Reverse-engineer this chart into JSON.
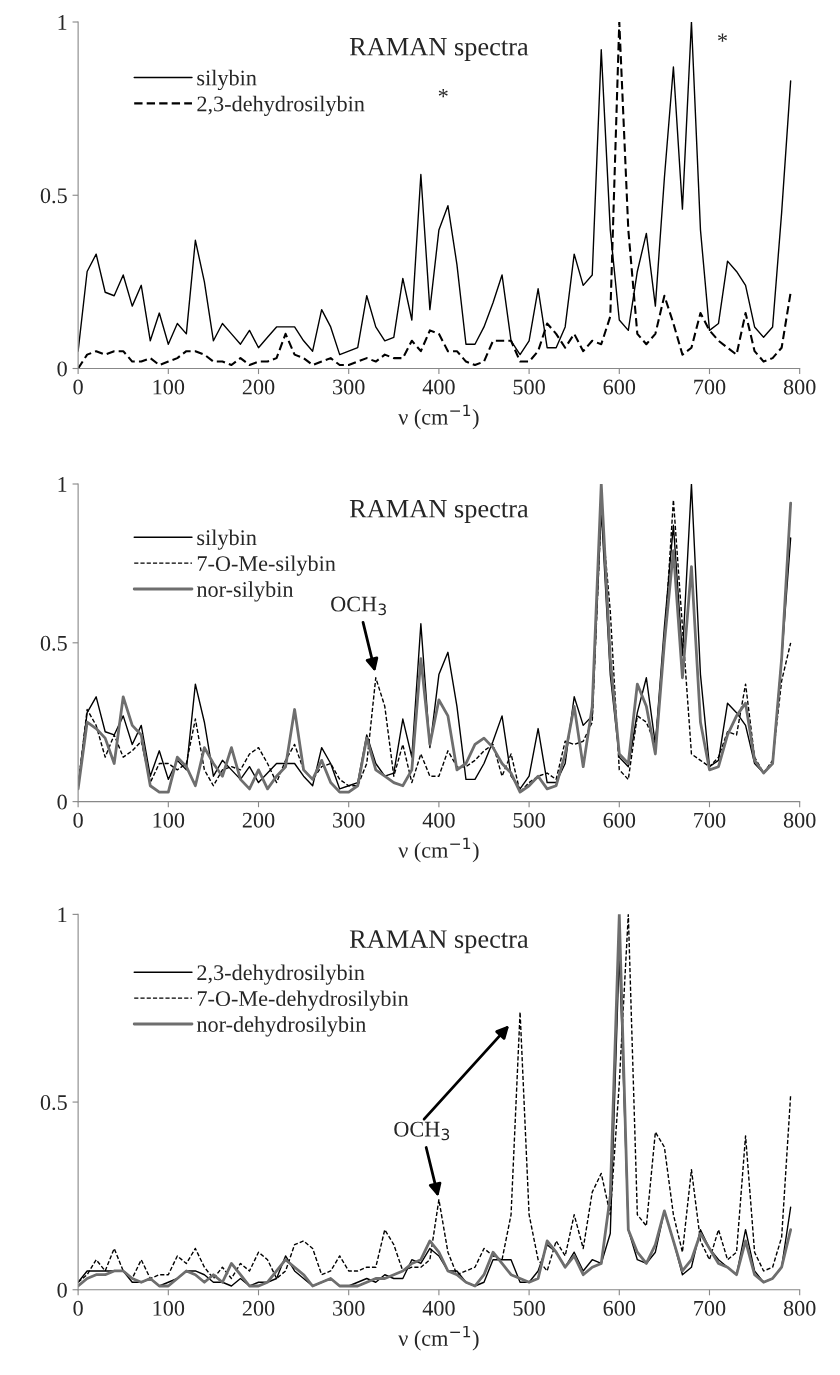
{
  "chart_data": [
    {
      "type": "line",
      "title": "RAMAN spectra",
      "xlabel": "ν (cm$^{−1}$)",
      "xlim": [
        0,
        800
      ],
      "ylim": [
        0,
        1
      ],
      "xticks": [
        0,
        100,
        200,
        300,
        400,
        500,
        600,
        700,
        800
      ],
      "yticks": [
        0,
        0.5,
        1
      ],
      "legend": "top left",
      "grid": false,
      "x": [
        0,
        10,
        20,
        30,
        40,
        50,
        60,
        70,
        80,
        90,
        100,
        110,
        120,
        130,
        140,
        150,
        160,
        170,
        180,
        190,
        200,
        210,
        220,
        230,
        240,
        250,
        260,
        270,
        280,
        290,
        300,
        310,
        320,
        330,
        340,
        350,
        360,
        370,
        380,
        390,
        400,
        410,
        420,
        430,
        440,
        450,
        460,
        470,
        480,
        490,
        500,
        510,
        520,
        530,
        540,
        550,
        560,
        570,
        580,
        590,
        600,
        610,
        620,
        630,
        640,
        650,
        660,
        670,
        680,
        690,
        700,
        710,
        720,
        730,
        740,
        750,
        760,
        770,
        780,
        790
      ],
      "series": [
        {
          "name": "silybin",
          "color": "#000000",
          "line_style": "solid",
          "values": [
            0.05,
            0.28,
            0.33,
            0.22,
            0.21,
            0.27,
            0.18,
            0.24,
            0.08,
            0.16,
            0.07,
            0.13,
            0.1,
            0.37,
            0.25,
            0.08,
            0.13,
            0.1,
            0.07,
            0.11,
            0.06,
            0.09,
            0.12,
            0.12,
            0.12,
            0.08,
            0.05,
            0.17,
            0.12,
            0.04,
            0.05,
            0.06,
            0.21,
            0.12,
            0.08,
            0.09,
            0.26,
            0.14,
            0.56,
            0.17,
            0.4,
            0.47,
            0.3,
            0.07,
            0.07,
            0.12,
            0.19,
            0.27,
            0.08,
            0.04,
            0.08,
            0.23,
            0.06,
            0.06,
            0.12,
            0.33,
            0.24,
            0.27,
            0.92,
            0.4,
            0.14,
            0.11,
            0.28,
            0.39,
            0.18,
            0.55,
            0.87,
            0.46,
            1.0,
            0.4,
            0.11,
            0.13,
            0.31,
            0.28,
            0.24,
            0.12,
            0.09,
            0.12,
            0.45,
            0.83
          ]
        },
        {
          "name": "2,3-dehydrosilybin",
          "color": "#000000",
          "line_style": "dashed",
          "values": [
            0.0,
            0.04,
            0.05,
            0.04,
            0.05,
            0.05,
            0.02,
            0.02,
            0.03,
            0.01,
            0.02,
            0.03,
            0.05,
            0.05,
            0.04,
            0.02,
            0.02,
            0.01,
            0.03,
            0.01,
            0.02,
            0.02,
            0.03,
            0.1,
            0.04,
            0.03,
            0.01,
            0.02,
            0.03,
            0.01,
            0.01,
            0.02,
            0.03,
            0.02,
            0.04,
            0.03,
            0.03,
            0.08,
            0.05,
            0.11,
            0.1,
            0.05,
            0.05,
            0.02,
            0.01,
            0.02,
            0.08,
            0.08,
            0.08,
            0.02,
            0.02,
            0.05,
            0.13,
            0.1,
            0.06,
            0.1,
            0.05,
            0.08,
            0.07,
            0.15,
            1.0,
            0.4,
            0.1,
            0.07,
            0.1,
            0.21,
            0.13,
            0.04,
            0.06,
            0.16,
            0.11,
            0.08,
            0.06,
            0.04,
            0.16,
            0.05,
            0.02,
            0.03,
            0.06,
            0.22
          ]
        }
      ],
      "annotations": [
        "*",
        "*"
      ]
    },
    {
      "type": "line",
      "title": "RAMAN spectra",
      "xlabel": "ν (cm$^{−1}$)",
      "xlim": [
        0,
        800
      ],
      "ylim": [
        0,
        1
      ],
      "xticks": [
        0,
        100,
        200,
        300,
        400,
        500,
        600,
        700,
        800
      ],
      "yticks": [
        0,
        0.5,
        1
      ],
      "legend": "top left",
      "grid": false,
      "x": [
        0,
        10,
        20,
        30,
        40,
        50,
        60,
        70,
        80,
        90,
        100,
        110,
        120,
        130,
        140,
        150,
        160,
        170,
        180,
        190,
        200,
        210,
        220,
        230,
        240,
        250,
        260,
        270,
        280,
        290,
        300,
        310,
        320,
        330,
        340,
        350,
        360,
        370,
        380,
        390,
        400,
        410,
        420,
        430,
        440,
        450,
        460,
        470,
        480,
        490,
        500,
        510,
        520,
        530,
        540,
        550,
        560,
        570,
        580,
        590,
        600,
        610,
        620,
        630,
        640,
        650,
        660,
        670,
        680,
        690,
        700,
        710,
        720,
        730,
        740,
        750,
        760,
        770,
        780,
        790
      ],
      "series": [
        {
          "name": "silybin",
          "color": "#000000",
          "line_style": "solid",
          "values": [
            0.05,
            0.28,
            0.33,
            0.22,
            0.21,
            0.27,
            0.18,
            0.24,
            0.08,
            0.16,
            0.07,
            0.13,
            0.1,
            0.37,
            0.25,
            0.08,
            0.13,
            0.1,
            0.07,
            0.11,
            0.06,
            0.09,
            0.12,
            0.12,
            0.12,
            0.08,
            0.05,
            0.17,
            0.12,
            0.04,
            0.05,
            0.06,
            0.21,
            0.12,
            0.08,
            0.09,
            0.26,
            0.14,
            0.56,
            0.17,
            0.4,
            0.47,
            0.3,
            0.07,
            0.07,
            0.12,
            0.19,
            0.27,
            0.08,
            0.04,
            0.08,
            0.23,
            0.06,
            0.06,
            0.12,
            0.33,
            0.24,
            0.27,
            0.92,
            0.4,
            0.14,
            0.11,
            0.28,
            0.39,
            0.18,
            0.55,
            0.87,
            0.46,
            1.0,
            0.4,
            0.11,
            0.13,
            0.31,
            0.28,
            0.24,
            0.12,
            0.09,
            0.12,
            0.45,
            0.83
          ]
        },
        {
          "name": "7-O-Me-silybin",
          "color": "#000000",
          "line_style": "dotted",
          "values": [
            0.05,
            0.29,
            0.24,
            0.14,
            0.21,
            0.14,
            0.16,
            0.19,
            0.06,
            0.12,
            0.12,
            0.1,
            0.12,
            0.26,
            0.1,
            0.05,
            0.1,
            0.11,
            0.1,
            0.15,
            0.17,
            0.12,
            0.06,
            0.13,
            0.18,
            0.1,
            0.07,
            0.11,
            0.12,
            0.07,
            0.05,
            0.05,
            0.12,
            0.39,
            0.3,
            0.08,
            0.18,
            0.06,
            0.15,
            0.08,
            0.08,
            0.16,
            0.11,
            0.11,
            0.13,
            0.16,
            0.18,
            0.08,
            0.15,
            0.03,
            0.06,
            0.08,
            0.09,
            0.07,
            0.19,
            0.18,
            0.19,
            0.25,
            0.92,
            0.6,
            0.1,
            0.07,
            0.27,
            0.25,
            0.18,
            0.5,
            0.95,
            0.55,
            0.15,
            0.13,
            0.11,
            0.14,
            0.22,
            0.21,
            0.37,
            0.14,
            0.09,
            0.13,
            0.38,
            0.5
          ]
        },
        {
          "name": "nor-silybin",
          "color": "#6e6e6e",
          "line_style": "solid",
          "values": [
            0.04,
            0.25,
            0.23,
            0.2,
            0.12,
            0.33,
            0.24,
            0.21,
            0.05,
            0.03,
            0.03,
            0.14,
            0.11,
            0.05,
            0.17,
            0.12,
            0.08,
            0.17,
            0.07,
            0.04,
            0.1,
            0.04,
            0.08,
            0.11,
            0.29,
            0.1,
            0.07,
            0.13,
            0.06,
            0.03,
            0.03,
            0.05,
            0.2,
            0.1,
            0.08,
            0.06,
            0.05,
            0.1,
            0.45,
            0.18,
            0.32,
            0.27,
            0.1,
            0.12,
            0.18,
            0.2,
            0.17,
            0.12,
            0.09,
            0.03,
            0.05,
            0.08,
            0.04,
            0.05,
            0.15,
            0.3,
            0.11,
            0.3,
            1.0,
            0.45,
            0.15,
            0.12,
            0.37,
            0.3,
            0.15,
            0.5,
            0.79,
            0.39,
            0.74,
            0.25,
            0.1,
            0.11,
            0.21,
            0.27,
            0.31,
            0.13,
            0.09,
            0.12,
            0.45,
            0.94
          ]
        }
      ],
      "annotations": [
        {
          "text": "OCH$_{3}$",
          "x": 330,
          "y": 0.4
        }
      ]
    },
    {
      "type": "line",
      "title": "RAMAN spectra",
      "xlabel": "ν (cm$^{−1}$)",
      "xlim": [
        0,
        800
      ],
      "ylim": [
        0,
        1
      ],
      "xticks": [
        0,
        100,
        200,
        300,
        400,
        500,
        600,
        700,
        800
      ],
      "yticks": [
        0,
        0.5,
        1
      ],
      "legend": "top left",
      "grid": false,
      "x": [
        0,
        10,
        20,
        30,
        40,
        50,
        60,
        70,
        80,
        90,
        100,
        110,
        120,
        130,
        140,
        150,
        160,
        170,
        180,
        190,
        200,
        210,
        220,
        230,
        240,
        250,
        260,
        270,
        280,
        290,
        300,
        310,
        320,
        330,
        340,
        350,
        360,
        370,
        380,
        390,
        400,
        410,
        420,
        430,
        440,
        450,
        460,
        470,
        480,
        490,
        500,
        510,
        520,
        530,
        540,
        550,
        560,
        570,
        580,
        590,
        600,
        610,
        620,
        630,
        640,
        650,
        660,
        670,
        680,
        690,
        700,
        710,
        720,
        730,
        740,
        750,
        760,
        770,
        780,
        790
      ],
      "series": [
        {
          "name": "2,3-dehydrosilybin",
          "color": "#000000",
          "line_style": "solid",
          "values": [
            0.02,
            0.05,
            0.05,
            0.05,
            0.05,
            0.05,
            0.02,
            0.02,
            0.03,
            0.01,
            0.02,
            0.03,
            0.05,
            0.05,
            0.04,
            0.02,
            0.02,
            0.01,
            0.03,
            0.01,
            0.02,
            0.02,
            0.03,
            0.09,
            0.05,
            0.03,
            0.01,
            0.02,
            0.03,
            0.01,
            0.01,
            0.02,
            0.03,
            0.02,
            0.04,
            0.03,
            0.03,
            0.08,
            0.07,
            0.11,
            0.09,
            0.05,
            0.05,
            0.02,
            0.01,
            0.02,
            0.08,
            0.08,
            0.08,
            0.02,
            0.02,
            0.05,
            0.12,
            0.1,
            0.06,
            0.1,
            0.05,
            0.08,
            0.07,
            0.15,
            0.9,
            0.16,
            0.08,
            0.07,
            0.1,
            0.21,
            0.13,
            0.04,
            0.06,
            0.16,
            0.11,
            0.08,
            0.06,
            0.04,
            0.16,
            0.05,
            0.02,
            0.03,
            0.06,
            0.22
          ]
        },
        {
          "name": "7-O-Me-dehydrosilybin",
          "color": "#000000",
          "line_style": "dotted",
          "values": [
            0.02,
            0.04,
            0.08,
            0.05,
            0.11,
            0.05,
            0.03,
            0.08,
            0.03,
            0.04,
            0.04,
            0.09,
            0.07,
            0.11,
            0.06,
            0.03,
            0.06,
            0.03,
            0.07,
            0.05,
            0.1,
            0.08,
            0.03,
            0.05,
            0.12,
            0.13,
            0.11,
            0.04,
            0.05,
            0.09,
            0.05,
            0.05,
            0.06,
            0.06,
            0.16,
            0.12,
            0.05,
            0.06,
            0.06,
            0.08,
            0.24,
            0.1,
            0.04,
            0.05,
            0.06,
            0.11,
            0.09,
            0.08,
            0.2,
            0.74,
            0.2,
            0.08,
            0.05,
            0.13,
            0.09,
            0.2,
            0.11,
            0.26,
            0.31,
            0.2,
            0.55,
            1.0,
            0.2,
            0.17,
            0.42,
            0.38,
            0.2,
            0.1,
            0.32,
            0.13,
            0.08,
            0.16,
            0.08,
            0.1,
            0.41,
            0.1,
            0.05,
            0.06,
            0.14,
            0.52
          ]
        },
        {
          "name": "nor-dehydrosilybin",
          "color": "#6e6e6e",
          "line_style": "solid",
          "values": [
            0.01,
            0.03,
            0.04,
            0.04,
            0.05,
            0.05,
            0.03,
            0.02,
            0.03,
            0.01,
            0.01,
            0.03,
            0.05,
            0.04,
            0.02,
            0.04,
            0.02,
            0.07,
            0.04,
            0.01,
            0.01,
            0.02,
            0.05,
            0.08,
            0.06,
            0.04,
            0.01,
            0.02,
            0.03,
            0.01,
            0.01,
            0.01,
            0.02,
            0.03,
            0.03,
            0.04,
            0.05,
            0.07,
            0.08,
            0.13,
            0.1,
            0.05,
            0.04,
            0.02,
            0.01,
            0.04,
            0.1,
            0.07,
            0.04,
            0.03,
            0.02,
            0.03,
            0.13,
            0.1,
            0.06,
            0.09,
            0.04,
            0.06,
            0.07,
            0.25,
            1.0,
            0.16,
            0.1,
            0.07,
            0.12,
            0.21,
            0.13,
            0.05,
            0.08,
            0.15,
            0.11,
            0.07,
            0.06,
            0.04,
            0.13,
            0.04,
            0.02,
            0.03,
            0.06,
            0.16
          ]
        }
      ],
      "annotations": [
        {
          "text": "OCH$_{3}$",
          "x": 400,
          "y": 0.24
        }
      ]
    }
  ]
}
